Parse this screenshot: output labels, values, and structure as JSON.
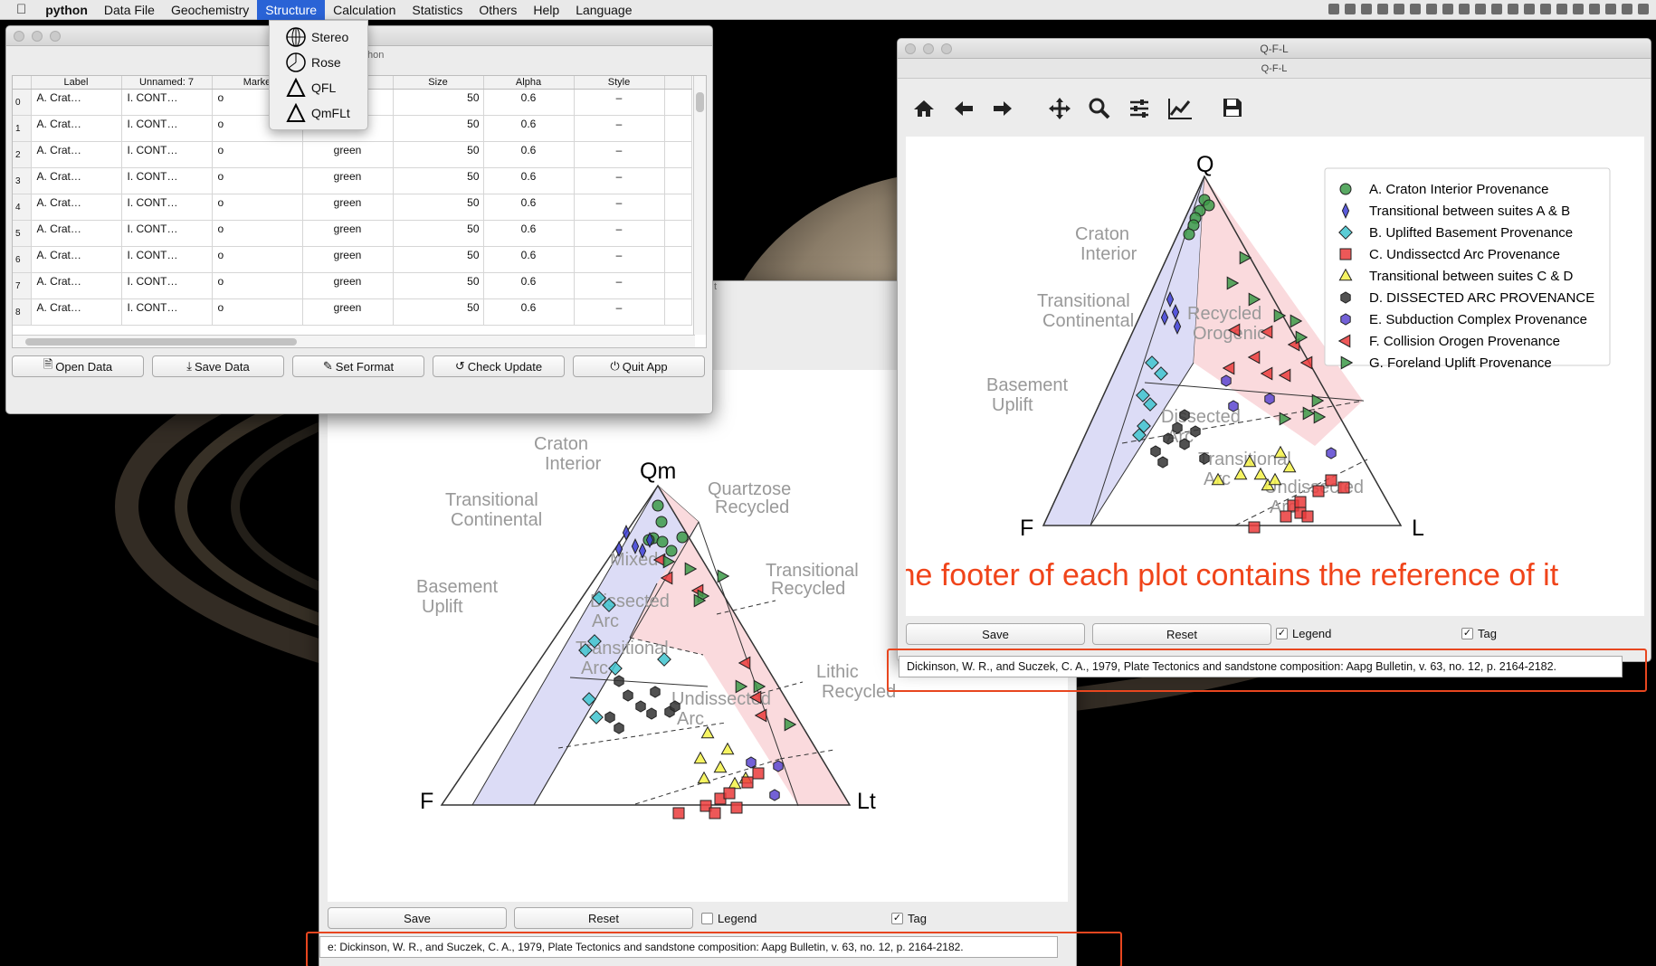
{
  "menubar": {
    "app": "python",
    "items": [
      "Data File",
      "Geochemistry",
      "Structure",
      "Calculation",
      "Statistics",
      "Others",
      "Help",
      "Language"
    ],
    "active": "Structure"
  },
  "structure_menu": {
    "items": [
      "Stereo",
      "Rose",
      "QFL",
      "QmFLt"
    ]
  },
  "main_window": {
    "subtitle": "thon",
    "columns": [
      "Label",
      "Unnamed: 7",
      "Marke",
      "",
      "Size",
      "Alpha",
      "Style"
    ],
    "rows": [
      {
        "n": "0",
        "label": "A. Crat…",
        "unnamed": "I. CONT…",
        "marker": "o",
        "color": "",
        "size": "50",
        "alpha": "0.6",
        "style": "–"
      },
      {
        "n": "1",
        "label": "A. Crat…",
        "unnamed": "I. CONT…",
        "marker": "o",
        "color": "green",
        "size": "50",
        "alpha": "0.6",
        "style": "–"
      },
      {
        "n": "2",
        "label": "A. Crat…",
        "unnamed": "I. CONT…",
        "marker": "o",
        "color": "green",
        "size": "50",
        "alpha": "0.6",
        "style": "–"
      },
      {
        "n": "3",
        "label": "A. Crat…",
        "unnamed": "I. CONT…",
        "marker": "o",
        "color": "green",
        "size": "50",
        "alpha": "0.6",
        "style": "–"
      },
      {
        "n": "4",
        "label": "A. Crat…",
        "unnamed": "I. CONT…",
        "marker": "o",
        "color": "green",
        "size": "50",
        "alpha": "0.6",
        "style": "–"
      },
      {
        "n": "5",
        "label": "A. Crat…",
        "unnamed": "I. CONT…",
        "marker": "o",
        "color": "green",
        "size": "50",
        "alpha": "0.6",
        "style": "–"
      },
      {
        "n": "6",
        "label": "A. Crat…",
        "unnamed": "I. CONT…",
        "marker": "o",
        "color": "green",
        "size": "50",
        "alpha": "0.6",
        "style": "–"
      },
      {
        "n": "7",
        "label": "A. Crat…",
        "unnamed": "I. CONT…",
        "marker": "o",
        "color": "green",
        "size": "50",
        "alpha": "0.6",
        "style": "–"
      },
      {
        "n": "8",
        "label": "A. Crat…",
        "unnamed": "I. CONT…",
        "marker": "o",
        "color": "green",
        "size": "50",
        "alpha": "0.6",
        "style": "–"
      }
    ],
    "buttons": [
      "Open Data",
      "Save Data",
      "Set Format",
      "Check Update",
      "Quit App"
    ]
  },
  "qmflt_window": {
    "labels": {
      "apex_top": "Qm",
      "left": "F",
      "right": "Lt"
    },
    "fields": [
      "Craton",
      "Interior",
      "Transitional",
      "Continental",
      "Basement",
      "Uplift",
      "Quartzose",
      "Recycled",
      "Mixed",
      "Transitional",
      "Recycled",
      "Dissected",
      "Arc",
      "Transitional",
      "Arc",
      "Lithic",
      "Recycled",
      "Undissected",
      "Arc"
    ],
    "save": "Save",
    "reset": "Reset",
    "legend": "Legend",
    "tag": "Tag",
    "legend_checked": false,
    "tag_checked": true,
    "reference": "e:  Dickinson, W. R., and Suczek, C. A., 1979, Plate Tectonics and sandstone composition: Aapg Bulletin, v. 63, no. 12, p. 2164-2182.",
    "under_text": "t"
  },
  "qfl_window": {
    "title": "Q-F-L",
    "subtitle": "Q-F-L",
    "toolbar": [
      "home-icon",
      "back-icon",
      "forward-icon",
      "pan-icon",
      "zoom-icon",
      "configure-icon",
      "edit-axis-icon",
      "save-icon"
    ],
    "labels": {
      "apex_top": "Q",
      "left": "F",
      "right": "L"
    },
    "fields": [
      "Craton",
      "Interior",
      "Transitional",
      "Continental",
      "Basement",
      "Uplift",
      "Recycled",
      "Orogenic",
      "Dissected",
      "Arc",
      "Transitional",
      "Arc",
      "Undissected",
      "Arc"
    ],
    "legend": [
      {
        "label": "A. Craton Interior Provenance",
        "color": "#3c9a48",
        "marker": "circle"
      },
      {
        "label": "Transitional between suites A & B",
        "color": "#3d3ed6",
        "marker": "thin-diamond"
      },
      {
        "label": "B. Uplifted Basement Provenance",
        "color": "#3fc4cf",
        "marker": "diamond"
      },
      {
        "label": "C. Undissectcd Arc Provenance",
        "color": "#ea3b3b",
        "marker": "square"
      },
      {
        "label": "Transitional between suites C & D",
        "color": "#f5f246",
        "marker": "triangle-up"
      },
      {
        "label": "D. DISSECTED ARC PROVENANCE",
        "color": "#333333",
        "marker": "hexagon"
      },
      {
        "label": "E. Subduction Complex Provenance",
        "color": "#5a45d0",
        "marker": "hexagon"
      },
      {
        "label": "F. Collision Orogen Provenance",
        "color": "#ea3b3b",
        "marker": "triangle-left"
      },
      {
        "label": "G. Foreland Uplift Provenance",
        "color": "#3c9a48",
        "marker": "triangle-right"
      }
    ],
    "annotation": "The footer of each plot contains the reference of it",
    "save": "Save",
    "reset": "Reset",
    "legend_toggle": "Legend",
    "tag": "Tag",
    "legend_checked": true,
    "tag_checked": true,
    "reference": "Dickinson, W. R., and Suczek, C. A., 1979, Plate Tectonics and sandstone composition: Aapg Bulletin, v. 63, no. 12, p. 2164-2182."
  },
  "colors": {
    "accent": "#2a63d6",
    "highlight": "#e8461f",
    "annotation": "#f0441a",
    "field_blue": "#dcdcf6",
    "field_pink": "#fadadd"
  }
}
